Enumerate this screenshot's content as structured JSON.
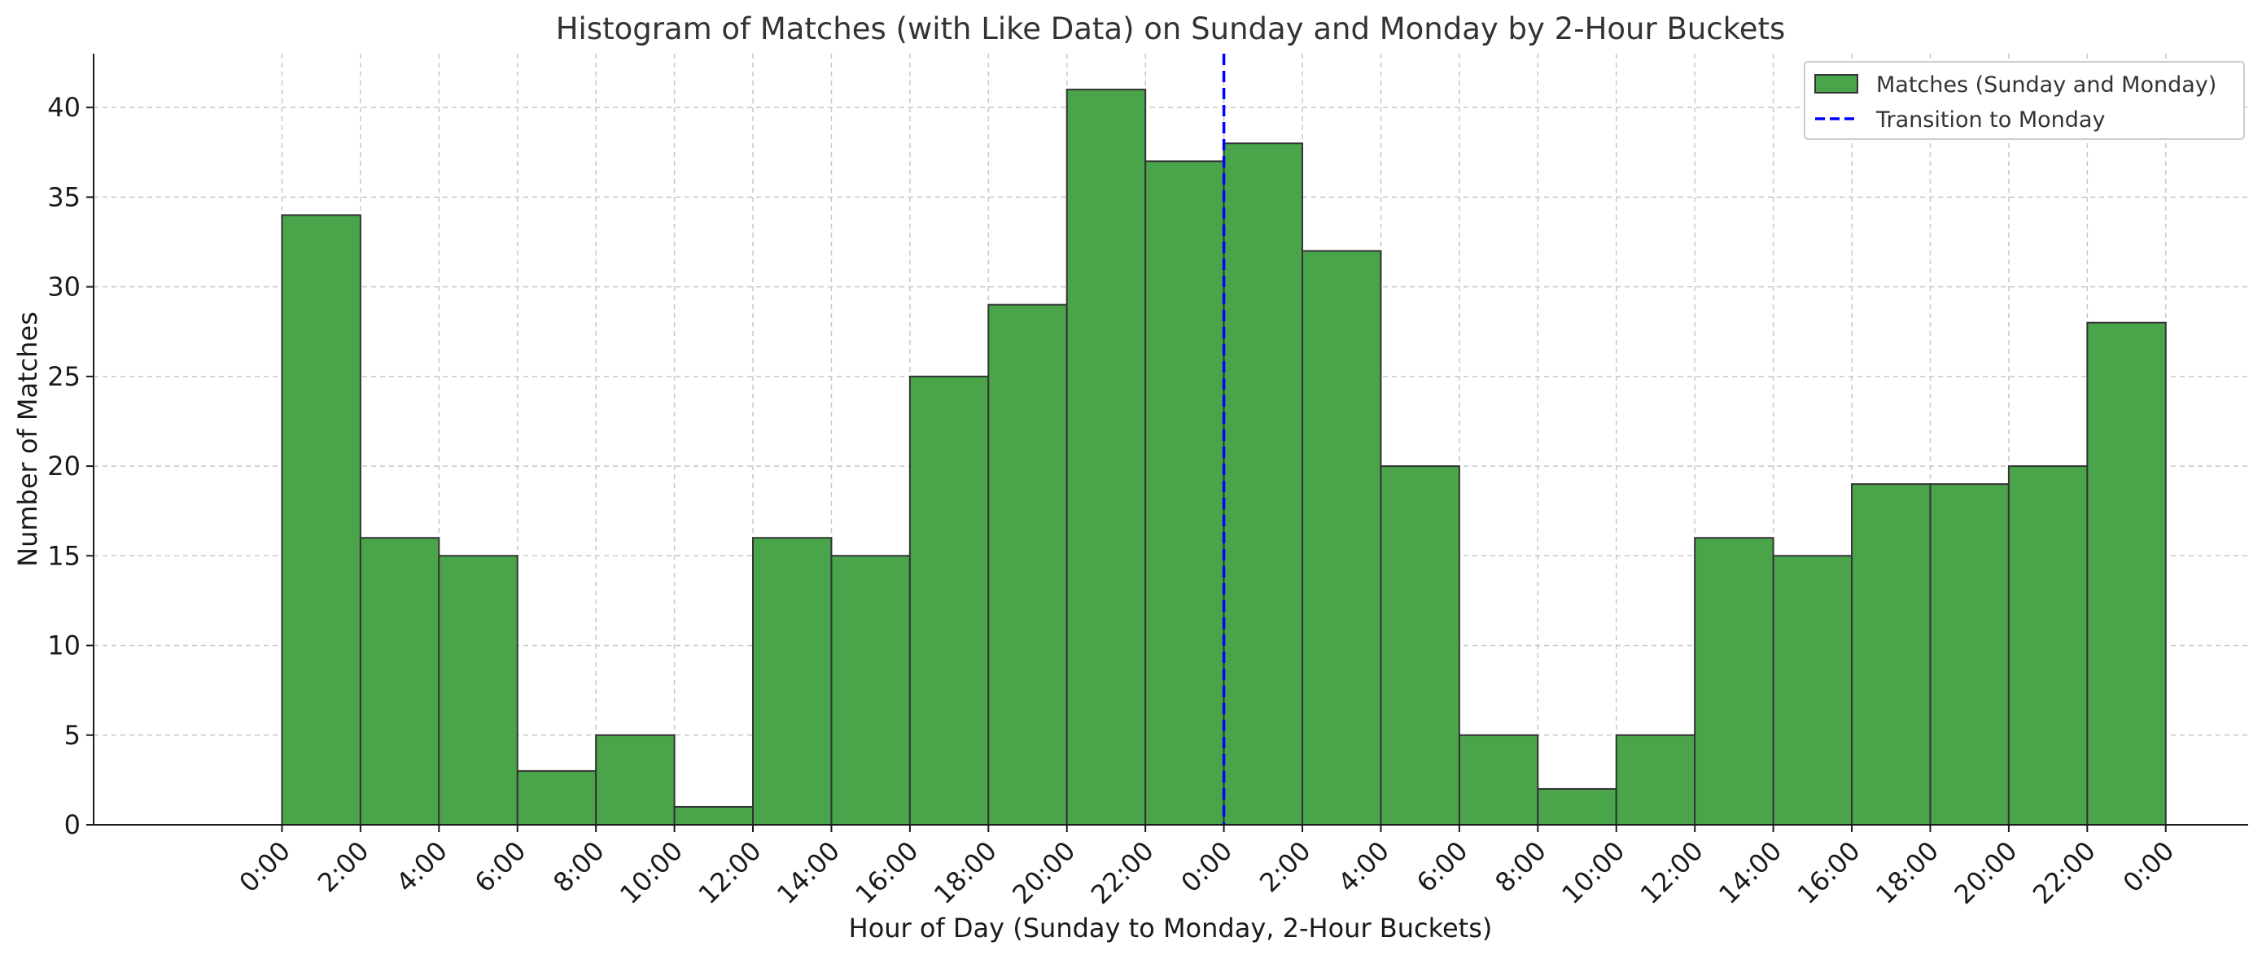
{
  "chart_data": {
    "type": "bar",
    "title": "Histogram of Matches (with Like Data) on Sunday and Monday by 2-Hour Buckets",
    "xlabel": "Hour of Day (Sunday to Monday, 2-Hour Buckets)",
    "ylabel": "Number of Matches",
    "x_tick_labels": [
      "0:00",
      "2:00",
      "4:00",
      "6:00",
      "8:00",
      "10:00",
      "12:00",
      "14:00",
      "16:00",
      "18:00",
      "20:00",
      "22:00",
      "0:00",
      "2:00",
      "4:00",
      "6:00",
      "8:00",
      "10:00",
      "12:00",
      "14:00",
      "16:00",
      "18:00",
      "20:00",
      "22:00",
      "0:00"
    ],
    "bin_edges_hours": [
      0,
      2,
      4,
      6,
      8,
      10,
      12,
      14,
      16,
      18,
      20,
      22,
      24,
      26,
      28,
      30,
      32,
      34,
      36,
      38,
      40,
      42,
      44,
      46,
      48
    ],
    "values": [
      34,
      16,
      15,
      3,
      5,
      1,
      16,
      15,
      25,
      29,
      41,
      37,
      38,
      32,
      20,
      5,
      2,
      5,
      16,
      15,
      19,
      19,
      20,
      28
    ],
    "series": [
      {
        "name": "Matches (Sunday and Monday)",
        "color": "#4aa54a",
        "edge_color": "#333333"
      }
    ],
    "reference_lines": [
      {
        "x_hours": 24,
        "label": "Transition to Monday",
        "color": "#0000ff",
        "style": "dashed"
      }
    ],
    "xlim_hours": [
      -4.8,
      50.1
    ],
    "ylim": [
      0,
      43
    ],
    "y_ticks": [
      0,
      5,
      10,
      15,
      20,
      25,
      30,
      35,
      40
    ],
    "grid": true,
    "legend_position": "top-right"
  }
}
